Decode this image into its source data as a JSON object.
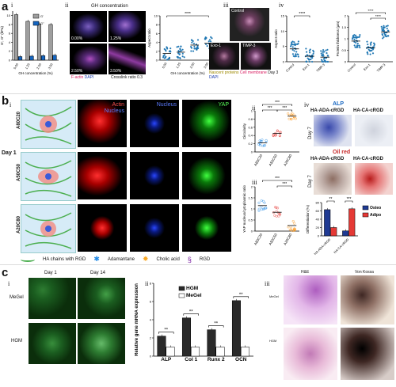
{
  "panel_a": {
    "label": "a",
    "sub_i": "i",
    "sub_ii": "ii",
    "sub_iii": "iii",
    "sub_iv": "iv",
    "gh_concentration_title": "GH concentration",
    "image_labels": [
      "0.00%",
      "1.25%",
      "2.50%",
      "3.50%"
    ],
    "factin_label": "F-actin",
    "dapi_label": "DAPI",
    "crosslink_label": "Crosslink ratio 0.3",
    "iii_control": "Control",
    "iii_exo1": "Exo-1",
    "iii_timp3": "TIMP-3",
    "iii_legend_nascent": "Nascent proteins",
    "iii_legend_dapi": "DAPI",
    "iii_legend_membrane": "Cell membrane",
    "iii_legend_day": "Day 3",
    "sig": "****"
  },
  "panel_b": {
    "label": "b",
    "sub_i": "i",
    "sub_ii": "ii",
    "sub_iii": "iii",
    "sub_iv": "iv",
    "day_label": "Day 1",
    "rows": [
      "A80C20",
      "A50C50",
      "A20C80"
    ],
    "actin": "Actin",
    "nucleus": "Nucleus",
    "nucleus2": "Nucleus",
    "yap": "YAP",
    "legend_chain": "HA chains with RGD",
    "legend_adamantane": "Adamantane",
    "legend_cholic": "Cholic acid",
    "legend_rgd": "RGD",
    "alp_title": "ALP",
    "oilred_title": "Oil red",
    "ha_ada": "HA-ADA-cRGD",
    "ha_ca": "HA-CA-cRGD",
    "day7": "Day 7",
    "osteo": "Osteo",
    "adipo": "Adipo",
    "sig3": "***",
    "sig2": "**"
  },
  "panel_c": {
    "label": "c",
    "sub_i": "i",
    "sub_ii": "ii",
    "sub_iii": "iii",
    "day1": "Day 1",
    "day14": "Day 14",
    "megel": "MeGel",
    "hgm": "HGM",
    "he": "H&E",
    "vonkossa": "Von Kossa",
    "sig": "**"
  },
  "chart_data": [
    {
      "id": "a-i",
      "type": "bar",
      "title": "",
      "xlabel": "GH concentration (%)",
      "ylabel": "G', G'' (kPa)",
      "categories": [
        "0.00",
        "1.25",
        "2.50",
        "3.50"
      ],
      "series": [
        {
          "name": "G'",
          "values": [
            10.2,
            8.7,
            8.1,
            8.0
          ],
          "color": "#9e9e9e"
        },
        {
          "name": "G''",
          "values": [
            0.8,
            0.9,
            1.0,
            1.1
          ],
          "color": "#1565c0"
        }
      ],
      "yticks": [
        0,
        2,
        4,
        6,
        8,
        10
      ],
      "ylim": [
        0,
        11
      ]
    },
    {
      "id": "a-ii",
      "type": "scatter",
      "title": "",
      "xlabel": "GH concentration (%)",
      "ylabel": "Aspect ratio",
      "categories": [
        "0.00",
        "1.25",
        "2.50",
        "3.50"
      ],
      "means": [
        1.5,
        1.8,
        3.4,
        3.8
      ],
      "ylim": [
        0,
        10
      ],
      "yticks": [
        0,
        2,
        4,
        6,
        8,
        10
      ],
      "significance": "****",
      "color": "#1f77b4"
    },
    {
      "id": "a-iv-1",
      "type": "scatter",
      "title": "",
      "xlabel": "",
      "ylabel": "Aspect ratio",
      "categories": [
        "Control",
        "Exo-1",
        "TIMP-3"
      ],
      "means": [
        4.2,
        1.8,
        1.5
      ],
      "ylim": [
        0,
        15
      ],
      "yticks": [
        0,
        5,
        10,
        15
      ],
      "significance": "****",
      "color": "#1f77b4"
    },
    {
      "id": "a-iv-2",
      "type": "scatter",
      "title": "",
      "xlabel": "",
      "ylabel": "Protein thickness (μm)",
      "categories": [
        "Control",
        "Exo-1",
        "TIMP-3"
      ],
      "means": [
        0.9,
        0.6,
        1.3
      ],
      "ylim": [
        0,
        2
      ],
      "yticks": [
        0.0,
        0.5,
        1.0,
        1.5,
        2.0
      ],
      "significance": "****",
      "color": "#1f77b4"
    },
    {
      "id": "b-ii",
      "type": "scatter",
      "title": "",
      "xlabel": "",
      "ylabel": "Circularity",
      "categories": [
        "A80C20",
        "A50C50",
        "A20C80"
      ],
      "means": [
        0.22,
        0.45,
        0.87
      ],
      "ylim": [
        0,
        1.0
      ],
      "yticks": [
        0.0,
        0.2,
        0.4,
        0.6,
        0.8,
        1.0
      ],
      "significance": "***",
      "colors": [
        "#1e88e5",
        "#e53935",
        "#fb8c00"
      ]
    },
    {
      "id": "b-iii",
      "type": "scatter",
      "title": "",
      "xlabel": "",
      "ylabel": "YAP nucleus/cytoplasmic ratio",
      "categories": [
        "A80C20",
        "A50C50",
        "A20C80"
      ],
      "means": [
        1.15,
        0.85,
        0.25
      ],
      "ylim": [
        0,
        2.0
      ],
      "yticks": [
        0.0,
        0.5,
        1.0,
        1.5,
        2.0
      ],
      "significance": "***",
      "colors": [
        "#1e88e5",
        "#e53935",
        "#fb8c00"
      ]
    },
    {
      "id": "b-iv",
      "type": "bar",
      "title": "",
      "xlabel": "",
      "ylabel": "Differentiation (%)",
      "categories": [
        "HA-ADA-cRGD",
        "HA-CA-cRGD"
      ],
      "series": [
        {
          "name": "Osteo",
          "values": [
            63,
            12
          ],
          "color": "#1f3a93"
        },
        {
          "name": "Adipo",
          "values": [
            20,
            65
          ],
          "color": "#e53935"
        }
      ],
      "ylim": [
        0,
        80
      ],
      "yticks": [
        0,
        20,
        40,
        60,
        80
      ],
      "significance": [
        "**",
        "***"
      ]
    },
    {
      "id": "c-ii",
      "type": "bar",
      "title": "",
      "xlabel": "",
      "ylabel": "Relative gene mRNA expression",
      "categories": [
        "ALP",
        "Col 1",
        "Runx 2",
        "OCN"
      ],
      "series": [
        {
          "name": "HGM",
          "values": [
            2.2,
            4.2,
            2.9,
            6.1
          ],
          "color": "#2a2a2a"
        },
        {
          "name": "MeGel",
          "values": [
            1.0,
            1.0,
            1.0,
            1.0
          ],
          "color": "#ffffff"
        }
      ],
      "ylim": [
        0,
        8
      ],
      "yticks": [
        0,
        2,
        4,
        6,
        8
      ],
      "significance": "**"
    }
  ]
}
